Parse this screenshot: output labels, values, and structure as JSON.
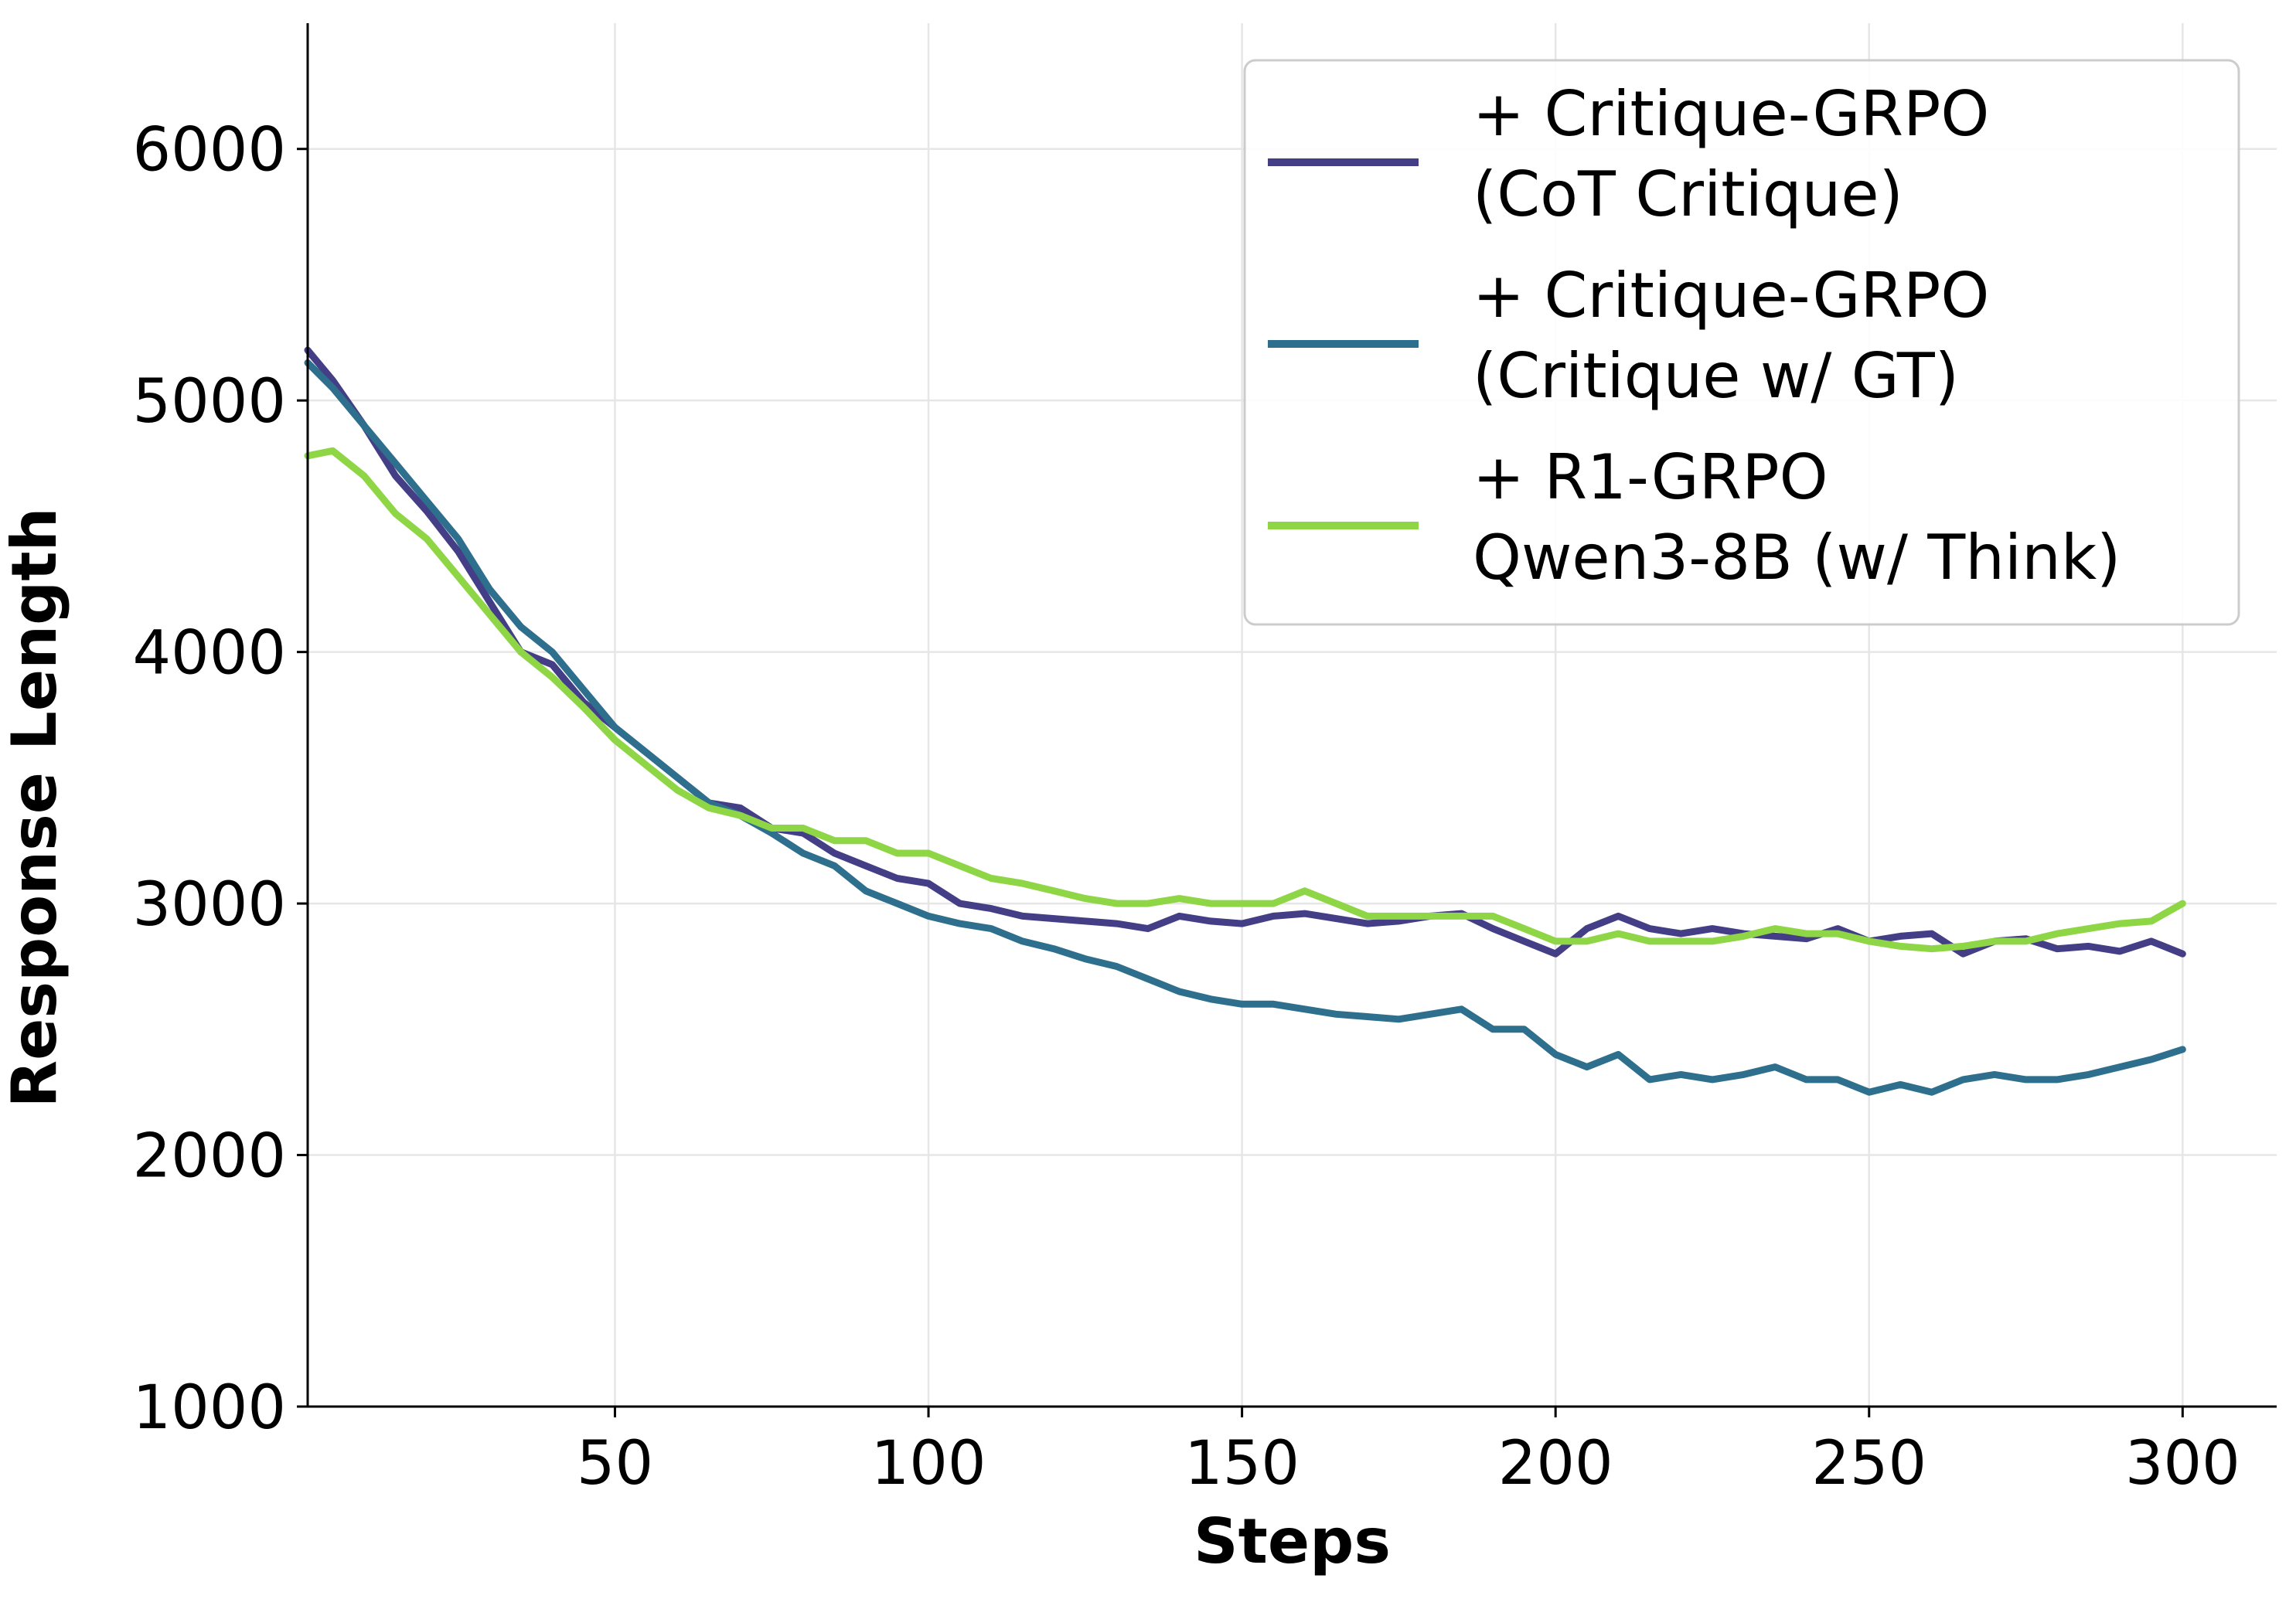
{
  "chart_data": {
    "type": "line",
    "title": "",
    "xlabel": "Steps",
    "ylabel": "Response Length",
    "xlim": [
      1,
      315
    ],
    "ylim": [
      1000,
      6500
    ],
    "xticks": [
      "50",
      "100",
      "150",
      "200",
      "250",
      "300"
    ],
    "yticks": [
      "1000",
      "2000",
      "3000",
      "4000",
      "5000",
      "6000"
    ],
    "grid": true,
    "legend_position": "top-right",
    "series": [
      {
        "name": "+ Critique-GRPO\n(CoT Critique)",
        "color": "#433e85",
        "x": [
          1,
          5,
          10,
          15,
          20,
          25,
          30,
          35,
          40,
          45,
          50,
          55,
          60,
          65,
          70,
          75,
          80,
          85,
          90,
          95,
          100,
          105,
          110,
          115,
          120,
          125,
          130,
          135,
          140,
          145,
          150,
          155,
          160,
          165,
          170,
          175,
          180,
          185,
          190,
          195,
          200,
          205,
          210,
          215,
          220,
          225,
          230,
          235,
          240,
          245,
          250,
          255,
          260,
          265,
          270,
          275,
          280,
          285,
          290,
          295,
          300
        ],
        "y": [
          5200,
          5080,
          4900,
          4700,
          4560,
          4400,
          4200,
          4000,
          3950,
          3800,
          3700,
          3600,
          3500,
          3400,
          3380,
          3300,
          3280,
          3200,
          3150,
          3100,
          3080,
          3000,
          2980,
          2950,
          2940,
          2930,
          2920,
          2900,
          2950,
          2930,
          2920,
          2950,
          2960,
          2940,
          2920,
          2930,
          2950,
          2960,
          2900,
          2850,
          2800,
          2900,
          2950,
          2900,
          2880,
          2900,
          2880,
          2870,
          2860,
          2900,
          2850,
          2870,
          2880,
          2800,
          2850,
          2860,
          2820,
          2830,
          2810,
          2850,
          2800
        ]
      },
      {
        "name": "+ Critique-GRPO\n(Critique w/ GT)",
        "color": "#2e6f8e",
        "x": [
          1,
          5,
          10,
          15,
          20,
          25,
          30,
          35,
          40,
          45,
          50,
          55,
          60,
          65,
          70,
          75,
          80,
          85,
          90,
          95,
          100,
          105,
          110,
          115,
          120,
          125,
          130,
          135,
          140,
          145,
          150,
          155,
          160,
          165,
          170,
          175,
          180,
          185,
          190,
          195,
          200,
          205,
          210,
          215,
          220,
          225,
          230,
          235,
          240,
          245,
          250,
          255,
          260,
          265,
          270,
          275,
          280,
          285,
          290,
          295,
          300
        ],
        "y": [
          5150,
          5050,
          4900,
          4750,
          4600,
          4450,
          4250,
          4100,
          4000,
          3850,
          3700,
          3600,
          3500,
          3400,
          3350,
          3280,
          3200,
          3150,
          3050,
          3000,
          2950,
          2920,
          2900,
          2850,
          2820,
          2780,
          2750,
          2700,
          2650,
          2620,
          2600,
          2600,
          2580,
          2560,
          2550,
          2540,
          2560,
          2580,
          2500,
          2500,
          2400,
          2350,
          2400,
          2300,
          2320,
          2300,
          2320,
          2350,
          2300,
          2300,
          2250,
          2280,
          2250,
          2300,
          2320,
          2300,
          2300,
          2320,
          2350,
          2380,
          2420
        ]
      },
      {
        "name": "+ R1-GRPO\nQwen3-8B (w/ Think)",
        "color": "#8ed645",
        "x": [
          1,
          5,
          10,
          15,
          20,
          25,
          30,
          35,
          40,
          45,
          50,
          55,
          60,
          65,
          70,
          75,
          80,
          85,
          90,
          95,
          100,
          105,
          110,
          115,
          120,
          125,
          130,
          135,
          140,
          145,
          150,
          155,
          160,
          165,
          170,
          175,
          180,
          185,
          190,
          195,
          200,
          205,
          210,
          215,
          220,
          225,
          230,
          235,
          240,
          245,
          250,
          255,
          260,
          265,
          270,
          275,
          280,
          285,
          290,
          295,
          300
        ],
        "y": [
          4780,
          4800,
          4700,
          4550,
          4450,
          4300,
          4150,
          4000,
          3900,
          3780,
          3650,
          3550,
          3450,
          3380,
          3350,
          3300,
          3300,
          3250,
          3250,
          3200,
          3200,
          3150,
          3100,
          3080,
          3050,
          3020,
          3000,
          3000,
          3020,
          3000,
          3000,
          3000,
          3050,
          3000,
          2950,
          2950,
          2950,
          2950,
          2950,
          2900,
          2850,
          2850,
          2880,
          2850,
          2850,
          2850,
          2870,
          2900,
          2880,
          2880,
          2850,
          2830,
          2820,
          2830,
          2850,
          2850,
          2880,
          2900,
          2920,
          2930,
          3000
        ]
      }
    ]
  }
}
